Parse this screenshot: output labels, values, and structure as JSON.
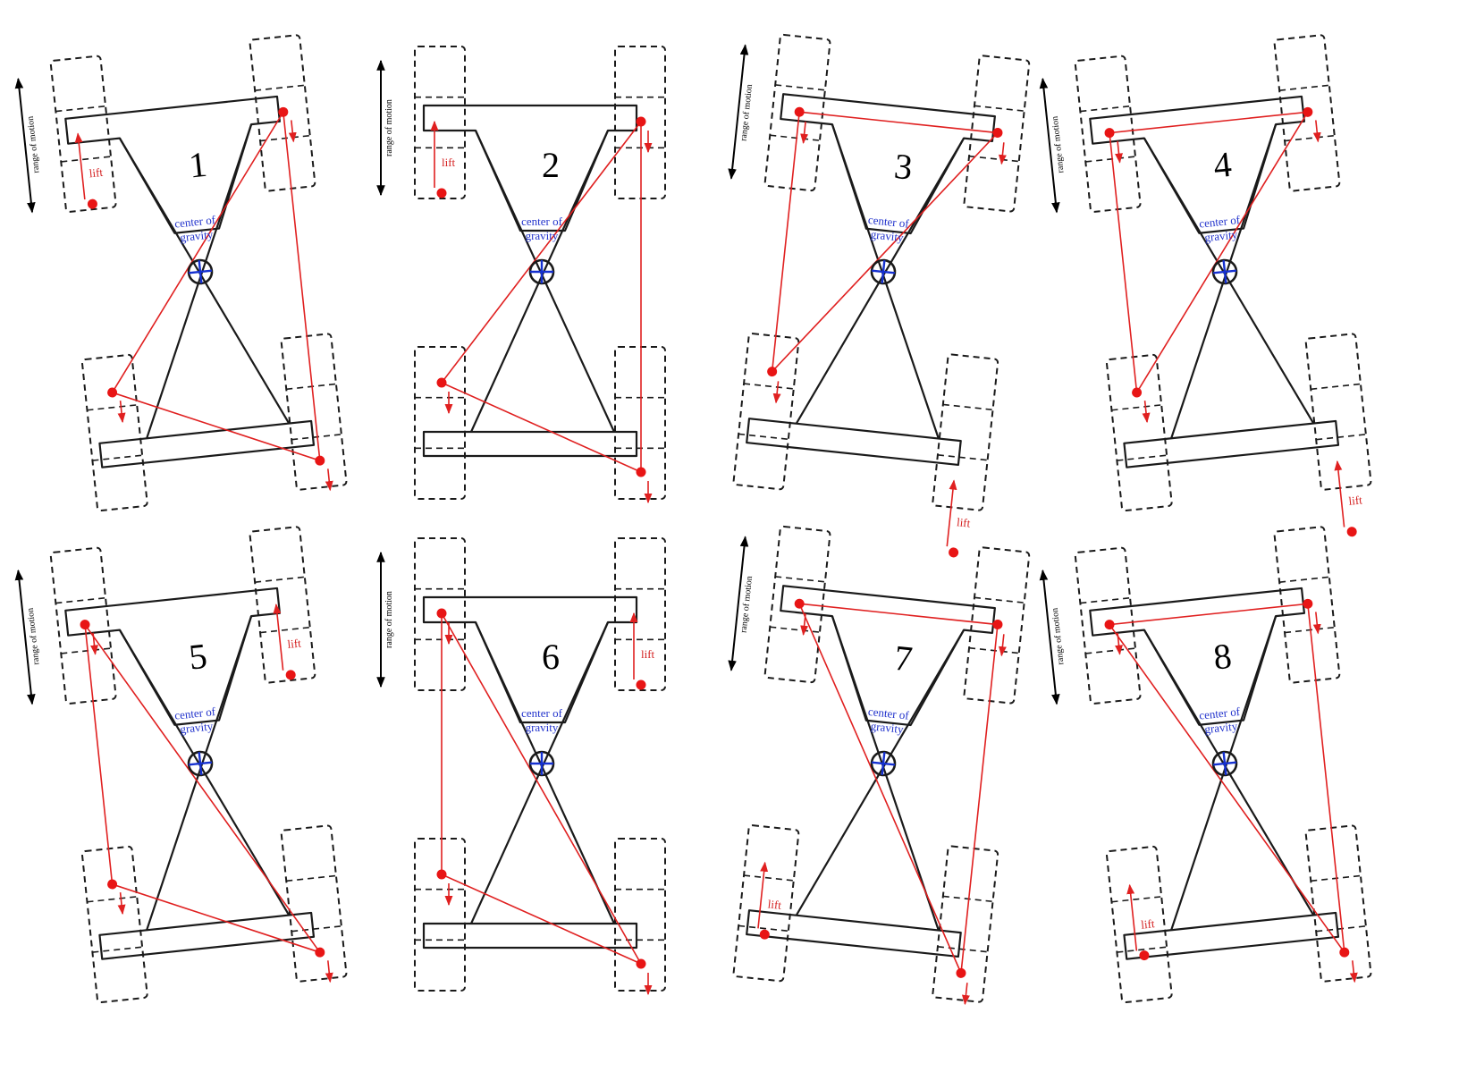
{
  "labels": {
    "cog_line1": "center of",
    "cog_line2": "gravity",
    "lift": "lift",
    "range": "range of motion"
  },
  "colors": {
    "support": "#e02020",
    "cog": "#1530d0",
    "frame": "#1a1a1a"
  },
  "panels": [
    {
      "id": 1,
      "label": "1",
      "lifted_leg": "front-left",
      "stance_tilt": "left"
    },
    {
      "id": 2,
      "label": "2",
      "lifted_leg": "front-left",
      "stance_tilt": "none"
    },
    {
      "id": 3,
      "label": "3",
      "lifted_leg": "rear-right",
      "stance_tilt": "right"
    },
    {
      "id": 4,
      "label": "4",
      "lifted_leg": "rear-right",
      "stance_tilt": "left"
    },
    {
      "id": 5,
      "label": "5",
      "lifted_leg": "front-right",
      "stance_tilt": "left"
    },
    {
      "id": 6,
      "label": "6",
      "lifted_leg": "front-right",
      "stance_tilt": "none"
    },
    {
      "id": 7,
      "label": "7",
      "lifted_leg": "rear-left",
      "stance_tilt": "right"
    },
    {
      "id": 8,
      "label": "8",
      "lifted_leg": "rear-left",
      "stance_tilt": "left"
    }
  ]
}
